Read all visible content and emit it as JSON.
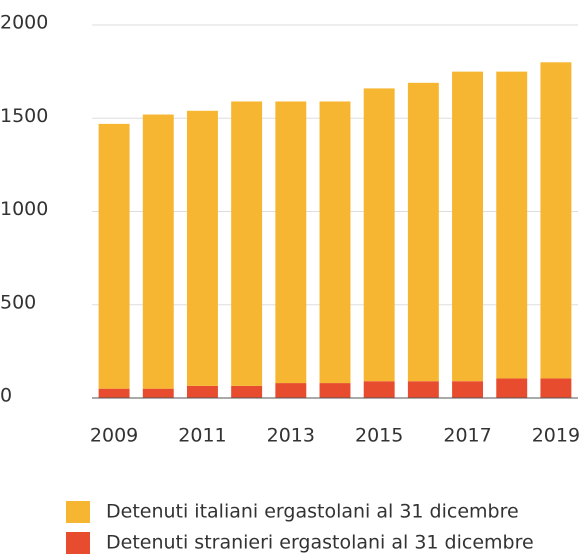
{
  "chart_data": {
    "type": "bar",
    "stacked": true,
    "categories": [
      "2009",
      null,
      "2011",
      null,
      "2013",
      null,
      "2015",
      null,
      "2017",
      null,
      "2019"
    ],
    "series": [
      {
        "name": "Detenuti italiani ergastolani al 31 dicembre",
        "color": "#f6b631",
        "values": [
          1420,
          1470,
          1475,
          1525,
          1510,
          1510,
          1570,
          1600,
          1660,
          1645,
          1695
        ]
      },
      {
        "name": "Detenuti stranieri ergastolani al 31 dicembre",
        "color": "#e84c2f",
        "values": [
          50,
          50,
          65,
          65,
          80,
          80,
          90,
          90,
          90,
          105,
          105
        ]
      }
    ],
    "ylim": [
      0,
      2000
    ],
    "yticks": [
      0,
      500,
      1000,
      1500,
      2000
    ],
    "grid": true,
    "legend": "bottom"
  }
}
